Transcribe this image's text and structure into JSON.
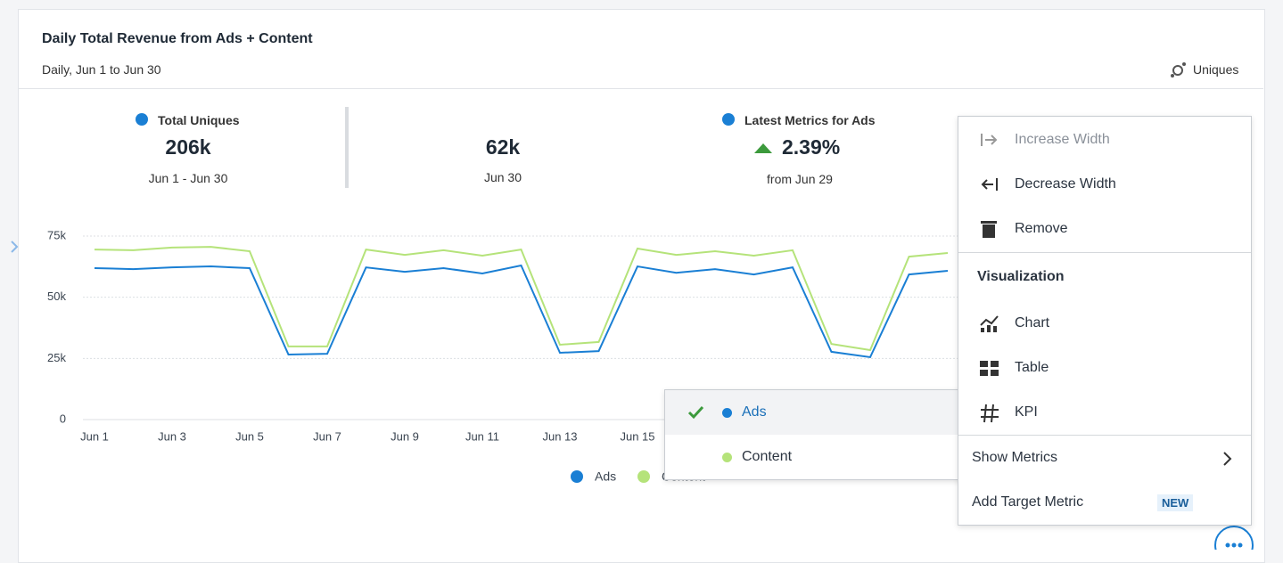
{
  "header": {
    "title": "Daily Total Revenue from Ads + Content",
    "subtitle": "Daily, Jun 1 to Jun 30",
    "metric_label": "Uniques"
  },
  "kpis": [
    {
      "label": "Total Uniques",
      "value": "206k",
      "period": "Jun 1 - Jun 30"
    },
    {
      "value": "62k",
      "period": "Jun 30"
    },
    {
      "label": "Latest Metrics for Ads",
      "value": "2.39%",
      "period": "from Jun 29"
    }
  ],
  "chart_data": {
    "type": "line",
    "categories": [
      "Jun 1",
      null,
      "Jun 3",
      null,
      "Jun 5",
      null,
      "Jun 7",
      null,
      "Jun 9",
      null,
      "Jun 11",
      null,
      "Jun 13",
      null,
      "Jun 15",
      null,
      null,
      null,
      null,
      null,
      null,
      null,
      null,
      null,
      null,
      null,
      null,
      null,
      null,
      null
    ],
    "series": [
      {
        "name": "Ads",
        "color": "#1a7fd4",
        "values": [
          61900,
          61500,
          62200,
          62600,
          61900,
          26600,
          26900,
          62200,
          60400,
          61900,
          59700,
          63000,
          27300,
          28000,
          62600,
          60000,
          61500,
          59300,
          62200,
          27700,
          25500,
          59300,
          60800,
          null,
          null,
          null,
          null,
          null,
          null,
          null
        ]
      },
      {
        "name": "Content",
        "color": "#b5e37a",
        "values": [
          69500,
          69200,
          70300,
          70600,
          68800,
          29900,
          29900,
          69500,
          67300,
          69200,
          67000,
          69500,
          30600,
          31700,
          69900,
          67300,
          68800,
          67000,
          69200,
          30900,
          28400,
          66600,
          68100,
          null,
          null,
          null,
          null,
          null,
          null,
          null
        ]
      }
    ],
    "ylim": [
      0,
      75000
    ],
    "yticks": [
      0,
      {
        "value": 25000,
        "label": "25k"
      },
      {
        "value": 50000,
        "label": "50k"
      },
      {
        "value": 75000,
        "label": "75k"
      }
    ],
    "grid": true
  },
  "menu": {
    "items": [
      "Increase Width",
      "Decrease Width",
      "Remove"
    ],
    "section": "Visualization",
    "visualizations": [
      "Chart",
      "Table",
      "KPI"
    ],
    "show_metrics": "Show Metrics",
    "add_target": "Add Target Metric",
    "badge": "NEW"
  }
}
